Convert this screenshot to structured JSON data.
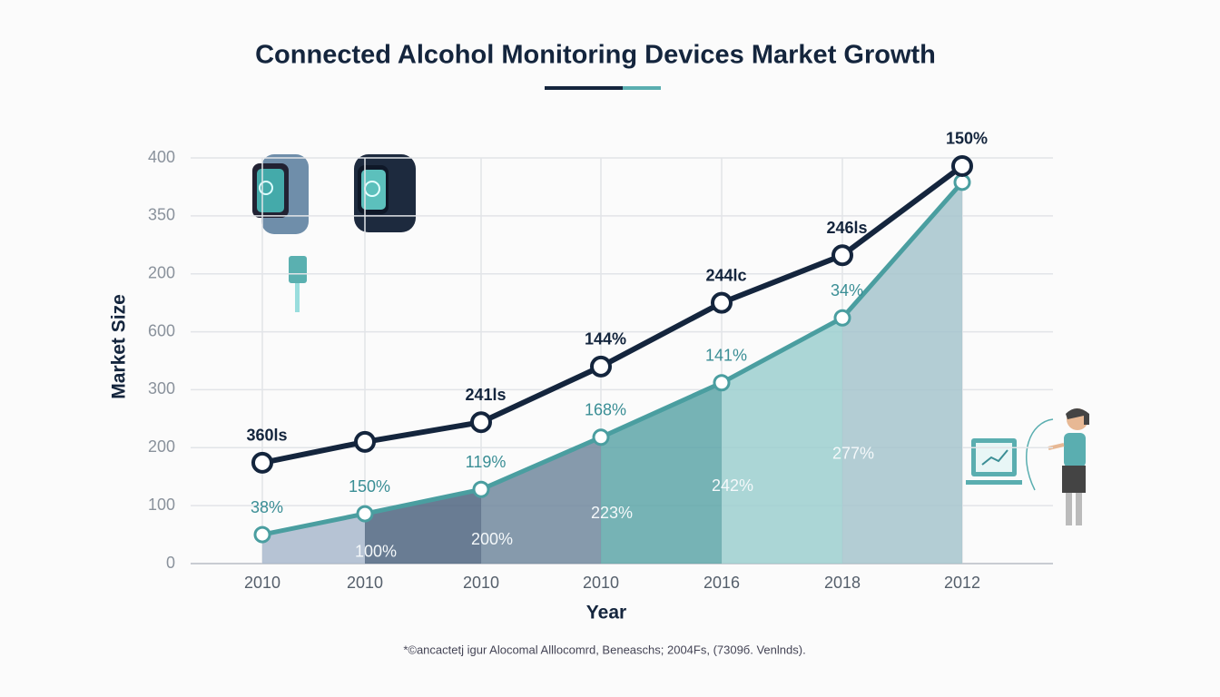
{
  "chart_data": {
    "type": "line",
    "title": "Connected Alcohol Monitoring Devices Market Growth",
    "x_label": "Year",
    "y_label": "Market Size",
    "categories": [
      "2010",
      "2010",
      "2010",
      "2010",
      "2016",
      "2018",
      "2012"
    ],
    "series": [
      {
        "color": "#14253d",
        "values": [
          87,
          105,
          122,
          170,
          225,
          266,
          343
        ],
        "point_labels": [
          "360ls",
          null,
          "241ls",
          "144%",
          "244lc",
          "246ls",
          "150%"
        ]
      },
      {
        "color": "#4a9ea0",
        "values": [
          25,
          43,
          64,
          109,
          156,
          212,
          329
        ],
        "point_labels": [
          "38%",
          "150%",
          "119%",
          "168%",
          "141%",
          "34%",
          null
        ],
        "area_colors": [
          "#a9b8cc",
          "#4f6580",
          "#71889e",
          "#5ea6a8",
          "#9ccfcf",
          "#a6c4cc"
        ],
        "area_labels": [
          null,
          "100%",
          "200%",
          "223%",
          "242%",
          "277%",
          null
        ]
      }
    ],
    "ylim": [
      0,
      350
    ],
    "yticks": [
      0,
      {
        "value": 50,
        "label": "100"
      },
      {
        "value": 100,
        "label": "200"
      },
      {
        "value": 150,
        "label": "300"
      },
      {
        "value": 200,
        "label": "600"
      },
      {
        "value": 250,
        "label": "200"
      },
      {
        "value": 300,
        "label": "350"
      },
      {
        "value": 350,
        "label": "400"
      }
    ],
    "grid": true,
    "footnote": "*©ancactetj igur Alocomal Alllocomrd, Beneaschs; 2004Fs, (7309б. Venlnds)."
  }
}
